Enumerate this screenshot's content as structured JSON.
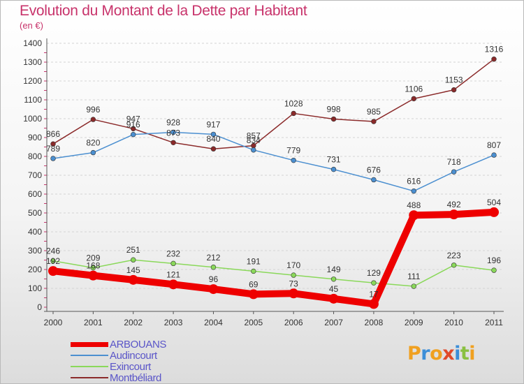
{
  "chart_data": {
    "type": "line",
    "title": "Evolution du Montant de la Dette par Habitant",
    "unit": "(en €)",
    "categories": [
      "2000",
      "2001",
      "2002",
      "2003",
      "2004",
      "2005",
      "2006",
      "2007",
      "2008",
      "2009",
      "2010",
      "2011"
    ],
    "ylim": [
      0,
      1400
    ],
    "yticks": [
      "0",
      "100",
      "200",
      "300",
      "400",
      "500",
      "600",
      "700",
      "800",
      "900",
      "1000",
      "1100",
      "1200",
      "1300",
      "1400"
    ],
    "grid": "horizontal dashed",
    "legend_position": "bottom-left",
    "series": [
      {
        "name": "ARBOUANS",
        "color": "#ee0000",
        "values": [
          192,
          168,
          145,
          121,
          96,
          69,
          73,
          45,
          17,
          488,
          492,
          504
        ],
        "labels": [
          "192",
          "168",
          "145",
          "121",
          "96",
          "69",
          "73",
          "45",
          "17",
          "488",
          "492",
          "504"
        ]
      },
      {
        "name": "Audincourt",
        "color": "#4b8fd0",
        "values": [
          789,
          820,
          916,
          928,
          917,
          834,
          779,
          731,
          676,
          616,
          718,
          807
        ],
        "labels": [
          "789",
          "820",
          "916",
          "928",
          "917",
          "834",
          "779",
          "731",
          "676",
          "616",
          "718",
          "807"
        ]
      },
      {
        "name": "Exincourt",
        "color": "#8ad85a",
        "values": [
          246,
          209,
          251,
          232,
          212,
          191,
          170,
          149,
          129,
          111,
          223,
          196
        ],
        "labels": [
          "246",
          "209",
          "251",
          "232",
          "212",
          "191",
          "170",
          "149",
          "129",
          "111",
          "223",
          "196"
        ]
      },
      {
        "name": "Montbéliard",
        "color": "#8b2a2a",
        "values": [
          866,
          996,
          947,
          873,
          840,
          857,
          1028,
          998,
          985,
          1106,
          1153,
          1316
        ],
        "labels": [
          "866",
          "996",
          "947",
          "873",
          "840",
          "857",
          "1028",
          "998",
          "985",
          "1106",
          "1153",
          "1316"
        ]
      }
    ]
  },
  "legend": {
    "items": [
      "ARBOUANS",
      "Audincourt",
      "Exincourt",
      "Montbéliard"
    ]
  },
  "logo": {
    "letters": [
      "P",
      "r",
      "o",
      "x",
      "i",
      "t",
      "i"
    ]
  }
}
